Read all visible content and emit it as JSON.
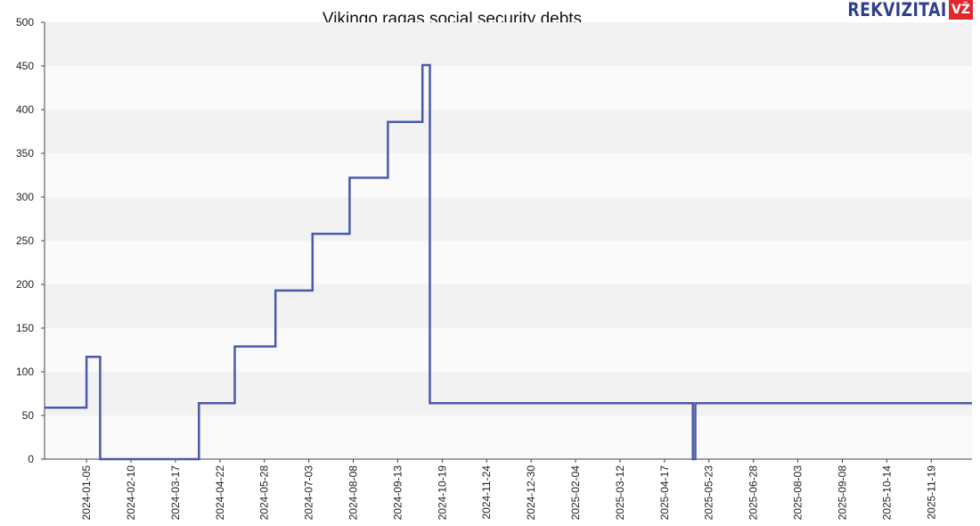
{
  "chart_data": {
    "type": "line",
    "title": "Vikingo ragas social security debts",
    "xlabel": "",
    "ylabel": "",
    "ylim": [
      0,
      500
    ],
    "y_ticks": [
      0,
      50,
      100,
      150,
      200,
      250,
      300,
      350,
      400,
      450,
      500
    ],
    "xlim": [
      "2023-12-02",
      "2025-12-22"
    ],
    "x_ticks": [
      "2024-01-05",
      "2024-02-10",
      "2024-03-17",
      "2024-04-22",
      "2024-05-28",
      "2024-07-03",
      "2024-08-08",
      "2024-09-13",
      "2024-10-19",
      "2024-11-24",
      "2024-12-30",
      "2025-02-04",
      "2025-03-12",
      "2025-04-17",
      "2025-05-23",
      "2025-06-28",
      "2025-08-03",
      "2025-09-08",
      "2025-10-14",
      "2025-11-19"
    ],
    "grid": "horizontal bands",
    "line_color": "#4a5aa8",
    "series": [
      {
        "x": [
          "2023-12-02",
          "2024-01-05",
          "2024-01-05",
          "2024-01-16",
          "2024-01-16",
          "2024-04-05",
          "2024-04-05",
          "2024-05-04",
          "2024-05-04",
          "2024-06-06",
          "2024-06-06",
          "2024-07-06",
          "2024-07-06",
          "2024-08-05",
          "2024-08-05",
          "2024-09-05",
          "2024-09-05",
          "2024-10-03",
          "2024-10-03",
          "2024-10-09",
          "2024-10-09",
          "2025-05-10",
          "2025-05-10",
          "2025-05-12",
          "2025-05-12",
          "2025-12-22"
        ],
        "values": [
          59,
          59,
          117,
          117,
          0,
          0,
          64,
          64,
          129,
          129,
          193,
          193,
          258,
          258,
          322,
          322,
          386,
          386,
          451,
          451,
          64,
          64,
          0,
          0,
          64,
          64
        ]
      }
    ]
  },
  "logo": {
    "text": "REKVIZITAI",
    "badge": "VŽ"
  }
}
